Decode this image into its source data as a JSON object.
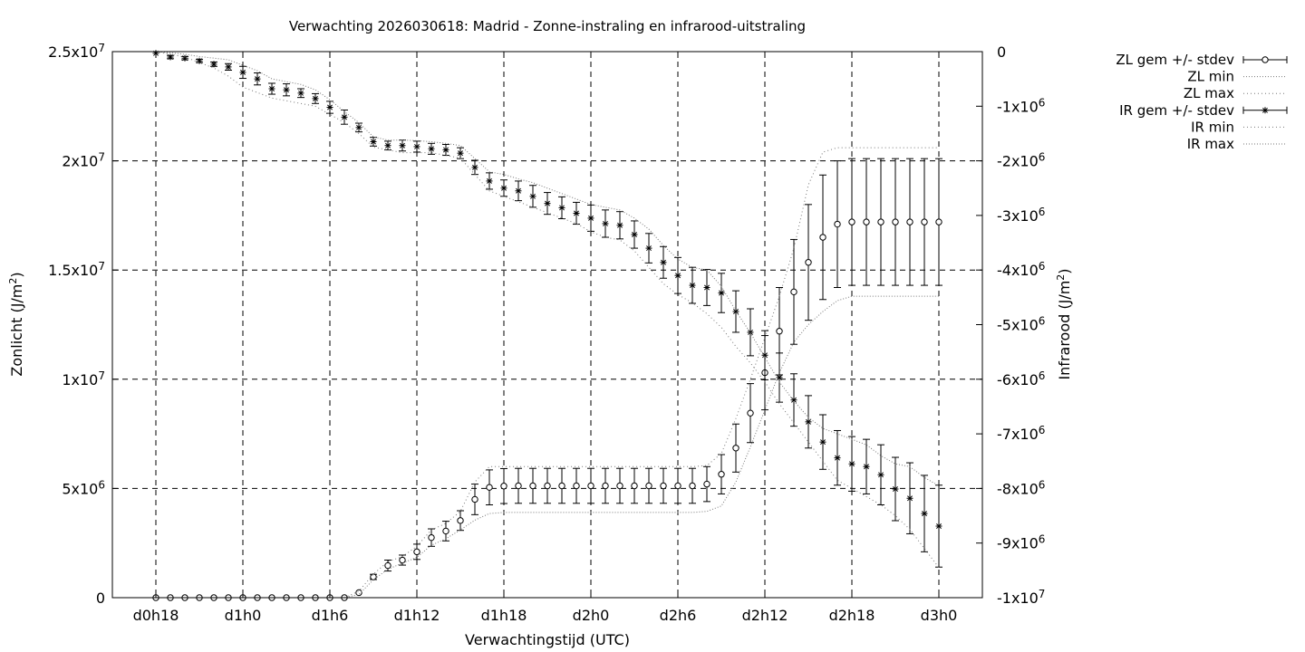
{
  "chart_data": {
    "type": "line",
    "title": "Verwachting 2026030618: Madrid - Zonne-instraling en infrarood-uitstraling",
    "xlabel": "Verwachtingstijd (UTC)",
    "ylabel_left": {
      "text": "Zonlicht (J/m",
      "sup": "2",
      "close": ")"
    },
    "ylabel_right": {
      "text": "Infrarood (J/m",
      "sup": "2",
      "close": ")"
    },
    "x_unit": "hours since forecast start",
    "xlim": [
      15,
      75
    ],
    "ylim_left": [
      0,
      25000000
    ],
    "ylim_right": [
      -10000000,
      0
    ],
    "grid": true,
    "legend_position": "outside right",
    "x_ticks": [
      {
        "x": 18,
        "label": "d0h18"
      },
      {
        "x": 24,
        "label": "d1h0"
      },
      {
        "x": 30,
        "label": "d1h6"
      },
      {
        "x": 36,
        "label": "d1h12"
      },
      {
        "x": 42,
        "label": "d1h18"
      },
      {
        "x": 48,
        "label": "d2h0"
      },
      {
        "x": 54,
        "label": "d2h6"
      },
      {
        "x": 60,
        "label": "d2h12"
      },
      {
        "x": 66,
        "label": "d2h18"
      },
      {
        "x": 72,
        "label": "d3h0"
      }
    ],
    "y_ticks_left": [
      {
        "v": 0,
        "m": "0",
        "e": ""
      },
      {
        "v": 5000000,
        "m": "5x10",
        "e": "6"
      },
      {
        "v": 10000000,
        "m": "1x10",
        "e": "7"
      },
      {
        "v": 15000000,
        "m": "1.5x10",
        "e": "7"
      },
      {
        "v": 20000000,
        "m": "2x10",
        "e": "7"
      },
      {
        "v": 25000000,
        "m": "2.5x10",
        "e": "7"
      }
    ],
    "y_ticks_right": [
      {
        "v": 0,
        "m": "0",
        "e": ""
      },
      {
        "v": -1000000,
        "m": "-1x10",
        "e": "6"
      },
      {
        "v": -2000000,
        "m": "-2x10",
        "e": "6"
      },
      {
        "v": -3000000,
        "m": "-3x10",
        "e": "6"
      },
      {
        "v": -4000000,
        "m": "-4x10",
        "e": "6"
      },
      {
        "v": -5000000,
        "m": "-5x10",
        "e": "6"
      },
      {
        "v": -6000000,
        "m": "-6x10",
        "e": "6"
      },
      {
        "v": -7000000,
        "m": "-7x10",
        "e": "6"
      },
      {
        "v": -8000000,
        "m": "-8x10",
        "e": "6"
      },
      {
        "v": -9000000,
        "m": "-9x10",
        "e": "6"
      },
      {
        "v": -10000000,
        "m": "-1x10",
        "e": "7"
      }
    ],
    "x": [
      18,
      19,
      20,
      21,
      22,
      23,
      24,
      25,
      26,
      27,
      28,
      29,
      30,
      31,
      32,
      33,
      34,
      35,
      36,
      37,
      38,
      39,
      40,
      41,
      42,
      43,
      44,
      45,
      46,
      47,
      48,
      49,
      50,
      51,
      52,
      53,
      54,
      55,
      56,
      57,
      58,
      59,
      60,
      61,
      62,
      63,
      64,
      65,
      66,
      67,
      68,
      69,
      70,
      71,
      72
    ],
    "series": [
      {
        "name": "ZL gem +/- stdev",
        "axis": "left",
        "marker": "circle",
        "mean": [
          0,
          0,
          0,
          0,
          0,
          0,
          0,
          0,
          0,
          0,
          0,
          0,
          0,
          0,
          230000,
          950000,
          1470000,
          1720000,
          2100000,
          2750000,
          3050000,
          3530000,
          4500000,
          5050000,
          5110000,
          5120000,
          5120000,
          5120000,
          5120000,
          5120000,
          5120000,
          5120000,
          5120000,
          5120000,
          5120000,
          5120000,
          5120000,
          5120000,
          5200000,
          5650000,
          6850000,
          8450000,
          10300000,
          12200000,
          14000000,
          15350000,
          16500000,
          17100000,
          17200000,
          17200000,
          17200000,
          17200000,
          17200000,
          17200000,
          17200000
        ],
        "stdev": [
          0,
          0,
          0,
          0,
          0,
          0,
          0,
          0,
          0,
          0,
          0,
          0,
          0,
          0,
          0,
          120000,
          250000,
          230000,
          350000,
          400000,
          450000,
          450000,
          700000,
          800000,
          800000,
          800000,
          800000,
          800000,
          800000,
          800000,
          800000,
          800000,
          800000,
          800000,
          800000,
          800000,
          800000,
          800000,
          800000,
          900000,
          1100000,
          1350000,
          1700000,
          2000000,
          2400000,
          2650000,
          2850000,
          2900000,
          2900000,
          2900000,
          2900000,
          2900000,
          2900000,
          2900000,
          2900000
        ]
      },
      {
        "name": "ZL min",
        "axis": "left",
        "style": "dotted",
        "values": [
          0,
          0,
          0,
          0,
          0,
          0,
          0,
          0,
          0,
          0,
          0,
          0,
          0,
          0,
          150000,
          820000,
          1300000,
          1580000,
          1850000,
          2400000,
          2700000,
          3100000,
          3550000,
          3850000,
          3900000,
          3900000,
          3900000,
          3900000,
          3900000,
          3900000,
          3900000,
          3900000,
          3900000,
          3900000,
          3900000,
          3900000,
          3900000,
          3900000,
          3950000,
          4200000,
          5300000,
          6900000,
          8600000,
          10300000,
          11700000,
          12500000,
          13100000,
          13600000,
          13800000,
          13800000,
          13800000,
          13800000,
          13800000,
          13800000,
          13800000
        ]
      },
      {
        "name": "ZL max",
        "axis": "left",
        "style": "dotted",
        "values": [
          0,
          0,
          0,
          0,
          0,
          0,
          0,
          0,
          0,
          0,
          0,
          0,
          0,
          0,
          300000,
          1080000,
          1650000,
          1880000,
          2350000,
          3100000,
          3400000,
          3950000,
          5300000,
          6000000,
          6000000,
          6000000,
          6000000,
          6000000,
          6000000,
          6000000,
          6000000,
          6000000,
          6000000,
          6000000,
          6000000,
          6000000,
          6000000,
          6000000,
          6050000,
          6600000,
          8200000,
          10000000,
          11900000,
          13800000,
          16000000,
          18900000,
          20400000,
          20600000,
          20600000,
          20600000,
          20600000,
          20600000,
          20600000,
          20600000,
          20600000
        ]
      },
      {
        "name": "IR gem +/- stdev",
        "axis": "right",
        "marker": "star",
        "mean": [
          -30000,
          -100000,
          -120000,
          -170000,
          -230000,
          -280000,
          -380000,
          -500000,
          -680000,
          -700000,
          -760000,
          -860000,
          -1020000,
          -1200000,
          -1390000,
          -1650000,
          -1720000,
          -1720000,
          -1740000,
          -1780000,
          -1800000,
          -1860000,
          -2120000,
          -2370000,
          -2500000,
          -2550000,
          -2650000,
          -2780000,
          -2860000,
          -2960000,
          -3050000,
          -3150000,
          -3180000,
          -3350000,
          -3600000,
          -3860000,
          -4100000,
          -4280000,
          -4320000,
          -4420000,
          -4760000,
          -5140000,
          -5560000,
          -5970000,
          -6380000,
          -6780000,
          -7150000,
          -7440000,
          -7550000,
          -7600000,
          -7750000,
          -8010000,
          -8180000,
          -8460000,
          -8690000
        ],
        "stdev": [
          0,
          30000,
          30000,
          30000,
          40000,
          60000,
          110000,
          110000,
          100000,
          110000,
          80000,
          90000,
          110000,
          130000,
          80000,
          80000,
          80000,
          100000,
          100000,
          100000,
          100000,
          100000,
          130000,
          150000,
          150000,
          180000,
          200000,
          200000,
          200000,
          200000,
          240000,
          250000,
          250000,
          250000,
          270000,
          290000,
          330000,
          330000,
          330000,
          360000,
          380000,
          430000,
          450000,
          450000,
          480000,
          480000,
          500000,
          500000,
          500000,
          500000,
          550000,
          580000,
          650000,
          700000,
          750000
        ]
      },
      {
        "name": "IR min",
        "axis": "right",
        "style": "dotted",
        "values": [
          0,
          -50000,
          -100000,
          -200000,
          -300000,
          -450000,
          -650000,
          -750000,
          -850000,
          -900000,
          -950000,
          -1000000,
          -1150000,
          -1300000,
          -1500000,
          -1750000,
          -1800000,
          -1850000,
          -1850000,
          -1850000,
          -1900000,
          -1950000,
          -2250000,
          -2550000,
          -2650000,
          -2750000,
          -2850000,
          -2950000,
          -3050000,
          -3150000,
          -3300000,
          -3400000,
          -3450000,
          -3650000,
          -3950000,
          -4250000,
          -4450000,
          -4600000,
          -4800000,
          -5050000,
          -5400000,
          -5700000,
          -6050000,
          -6450000,
          -6800000,
          -7150000,
          -7500000,
          -7850000,
          -8000000,
          -8150000,
          -8300000,
          -8500000,
          -8750000,
          -9100000,
          -9450000
        ]
      },
      {
        "name": "IR max",
        "axis": "right",
        "style": "dotted",
        "values": [
          0,
          -20000,
          -50000,
          -90000,
          -120000,
          -150000,
          -250000,
          -350000,
          -500000,
          -550000,
          -600000,
          -700000,
          -880000,
          -1100000,
          -1300000,
          -1560000,
          -1620000,
          -1620000,
          -1630000,
          -1650000,
          -1680000,
          -1720000,
          -1960000,
          -2200000,
          -2250000,
          -2330000,
          -2400000,
          -2500000,
          -2600000,
          -2700000,
          -2800000,
          -2850000,
          -2900000,
          -3050000,
          -3250000,
          -3550000,
          -3800000,
          -3950000,
          -4000000,
          -4300000,
          -4750000,
          -5150000,
          -5600000,
          -6050000,
          -6400000,
          -6700000,
          -6900000,
          -7000000,
          -7100000,
          -7200000,
          -7400000,
          -7550000,
          -7600000,
          -7800000,
          -7950000
        ]
      }
    ]
  }
}
